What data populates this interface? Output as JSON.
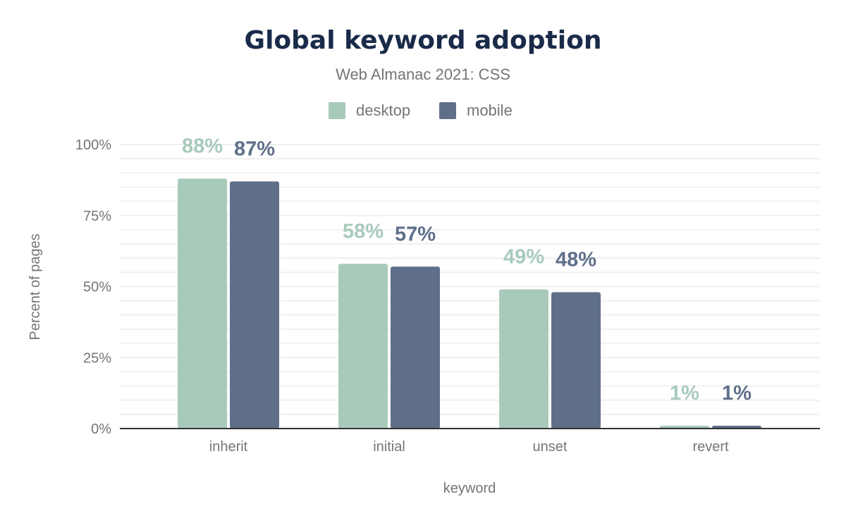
{
  "chart_data": {
    "type": "bar",
    "title": "Global keyword adoption",
    "subtitle": "Web Almanac 2021: CSS",
    "xlabel": "keyword",
    "ylabel": "Percent of pages",
    "categories": [
      "inherit",
      "initial",
      "unset",
      "revert"
    ],
    "series": [
      {
        "name": "desktop",
        "color": "#a8cabb",
        "values": [
          88,
          58,
          49,
          1
        ],
        "labels": [
          "88%",
          "58%",
          "49%",
          "1%"
        ]
      },
      {
        "name": "mobile",
        "color": "#5f6f8a",
        "values": [
          87,
          57,
          48,
          1
        ],
        "labels": [
          "87%",
          "57%",
          "48%",
          "1%"
        ]
      }
    ],
    "ylim": [
      0,
      100
    ],
    "yticks": [
      "0%",
      "25%",
      "50%",
      "75%",
      "100%"
    ],
    "grid": true,
    "legend": "top-center"
  }
}
